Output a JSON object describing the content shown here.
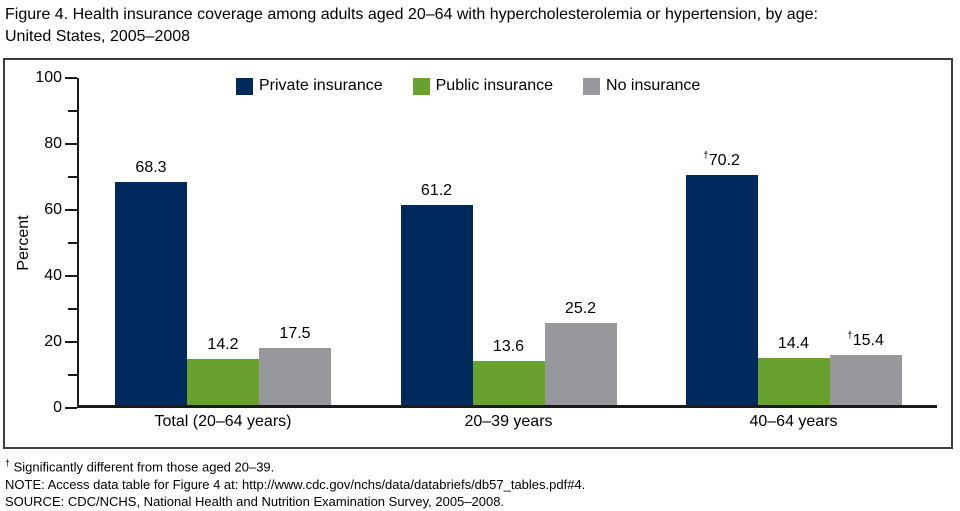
{
  "title": "Figure 4. Health insurance coverage among adults aged 20–64 with hypercholesterolemia or hypertension, by age:\nUnited States, 2005–2008",
  "chart_data": {
    "type": "bar",
    "title": "Health insurance coverage among adults aged 20–64 with hypercholesterolemia or hypertension, by age: United States, 2005–2008",
    "categories": [
      "Total (20–64 years)",
      "20–39 years",
      "40–64 years"
    ],
    "series": [
      {
        "name": "Private insurance",
        "color": "#002a5e",
        "values": [
          68.3,
          61.2,
          70.2
        ],
        "dagger": [
          false,
          false,
          true
        ]
      },
      {
        "name": "Public insurance",
        "color": "#69a12e",
        "values": [
          14.2,
          13.6,
          14.4
        ],
        "dagger": [
          false,
          false,
          false
        ]
      },
      {
        "name": "No insurance",
        "color": "#96989b",
        "values": [
          17.5,
          25.2,
          15.4
        ],
        "dagger": [
          false,
          false,
          true
        ]
      }
    ],
    "xlabel": "",
    "ylabel": "Percent",
    "ylim": [
      0,
      100
    ],
    "yticks": [
      0,
      20,
      40,
      60,
      80,
      100
    ],
    "minor_yticks": [
      10,
      30,
      50,
      70,
      90
    ],
    "legend_position": "top-inside",
    "grid": false,
    "dagger_symbol": "†"
  },
  "footnotes": {
    "dagger_symbol": "†",
    "dagger_note": " Significantly different from those aged 20–39.",
    "note": "NOTE: Access data table for Figure 4 at: http://www.cdc.gov/nchs/data/databriefs/db57_tables.pdf#4.",
    "source": "SOURCE: CDC/NCHS, National Health and Nutrition Examination Survey, 2005–2008."
  }
}
